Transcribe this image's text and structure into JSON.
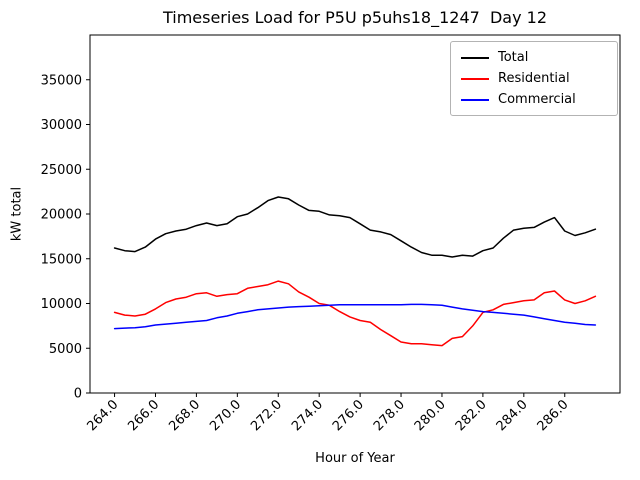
{
  "figure": {
    "title": "Timeseries Load for P5U p5uhs18_1247  Day 12",
    "xlabel": "Hour of Year",
    "ylabel": "kW total"
  },
  "chart_data": {
    "type": "line",
    "title": "Timeseries Load for P5U p5uhs18_1247  Day 12",
    "xlabel": "Hour of Year",
    "ylabel": "kW total",
    "grid": false,
    "legend_position": "upper right",
    "xlim": [
      262.8,
      288.7
    ],
    "ylim": [
      0,
      40000
    ],
    "xticks": {
      "positions": [
        264,
        266,
        268,
        270,
        272,
        274,
        276,
        278,
        280,
        282,
        284,
        286
      ],
      "labels": [
        "264.0",
        "266.0",
        "268.0",
        "270.0",
        "272.0",
        "274.0",
        "276.0",
        "278.0",
        "280.0",
        "282.0",
        "284.0",
        "286.0"
      ]
    },
    "yticks": {
      "positions": [
        0,
        5000,
        10000,
        15000,
        20000,
        25000,
        30000,
        35000
      ],
      "labels": [
        "0",
        "5000",
        "10000",
        "15000",
        "20000",
        "25000",
        "30000",
        "35000"
      ]
    },
    "x": [
      264.0,
      264.5,
      265.0,
      265.5,
      266.0,
      266.5,
      267.0,
      267.5,
      268.0,
      268.5,
      269.0,
      269.5,
      270.0,
      270.5,
      271.0,
      271.5,
      272.0,
      272.5,
      273.0,
      273.5,
      274.0,
      274.5,
      275.0,
      275.5,
      276.0,
      276.5,
      277.0,
      277.5,
      278.0,
      278.5,
      279.0,
      279.5,
      280.0,
      280.5,
      281.0,
      281.5,
      282.0,
      282.5,
      283.0,
      283.5,
      284.0,
      284.5,
      285.0,
      285.5,
      286.0,
      286.5,
      287.0,
      287.5
    ],
    "series": [
      {
        "name": "Total",
        "color": "#000000",
        "values": [
          16200,
          15900,
          15800,
          16300,
          17200,
          17800,
          18100,
          18300,
          18700,
          19000,
          18700,
          18900,
          19700,
          20000,
          20700,
          21500,
          21900,
          21700,
          21000,
          20400,
          20300,
          19900,
          19800,
          19600,
          18900,
          18200,
          18000,
          17700,
          17000,
          16300,
          15700,
          15400,
          15400,
          15200,
          15400,
          15300,
          15900,
          16200,
          17300,
          18200,
          18400,
          18500,
          19100,
          19600,
          18100,
          17600,
          17900,
          18300
        ]
      },
      {
        "name": "Residential",
        "color": "#ff0000",
        "values": [
          9000,
          8700,
          8600,
          8800,
          9400,
          10100,
          10500,
          10700,
          11100,
          11200,
          10800,
          11000,
          11100,
          11700,
          11900,
          12100,
          12500,
          12200,
          11300,
          10700,
          10000,
          9800,
          9100,
          8500,
          8100,
          7900,
          7100,
          6400,
          5700,
          5500,
          5500,
          5400,
          5300,
          6100,
          6300,
          7500,
          9000,
          9300,
          9900,
          10100,
          10300,
          10400,
          11200,
          11400,
          10400,
          10000,
          10300,
          10800
        ]
      },
      {
        "name": "Commercial",
        "color": "#0000ff",
        "values": [
          7200,
          7250,
          7300,
          7400,
          7600,
          7700,
          7800,
          7900,
          8000,
          8100,
          8400,
          8600,
          8900,
          9100,
          9300,
          9400,
          9500,
          9600,
          9650,
          9700,
          9750,
          9800,
          9850,
          9850,
          9850,
          9850,
          9850,
          9850,
          9850,
          9900,
          9900,
          9850,
          9800,
          9600,
          9400,
          9250,
          9100,
          9000,
          8900,
          8800,
          8700,
          8500,
          8300,
          8100,
          7900,
          7800,
          7650,
          7600
        ]
      }
    ]
  }
}
